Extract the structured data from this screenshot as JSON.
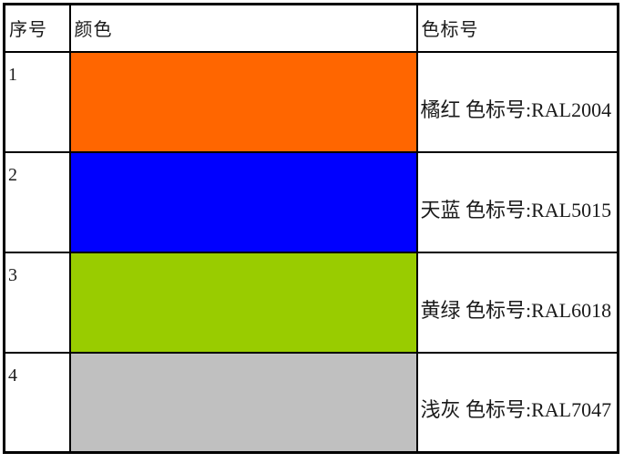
{
  "table": {
    "headers": {
      "no": "序号",
      "color": "颜色",
      "code": "色标号"
    },
    "rows": [
      {
        "index": "1",
        "color_name": "橘红",
        "ral_code": "RAL2004",
        "swatch_color": "#FF6600",
        "label": "橘红 色标号:RAL2004"
      },
      {
        "index": "2",
        "color_name": "天蓝",
        "ral_code": "RAL5015",
        "swatch_color": "#0000FF",
        "label": "天蓝 色标号:RAL5015"
      },
      {
        "index": "3",
        "color_name": "黄绿",
        "ral_code": "RAL6018",
        "swatch_color": "#99CC00",
        "label": "黄绿 色标号:RAL6018"
      },
      {
        "index": "4",
        "color_name": "浅灰",
        "ral_code": "RAL7047",
        "swatch_color": "#C0C0C0",
        "label": "浅灰 色标号:RAL7047"
      }
    ],
    "border_color": "#000000",
    "text_color": "#1a1a1a"
  }
}
